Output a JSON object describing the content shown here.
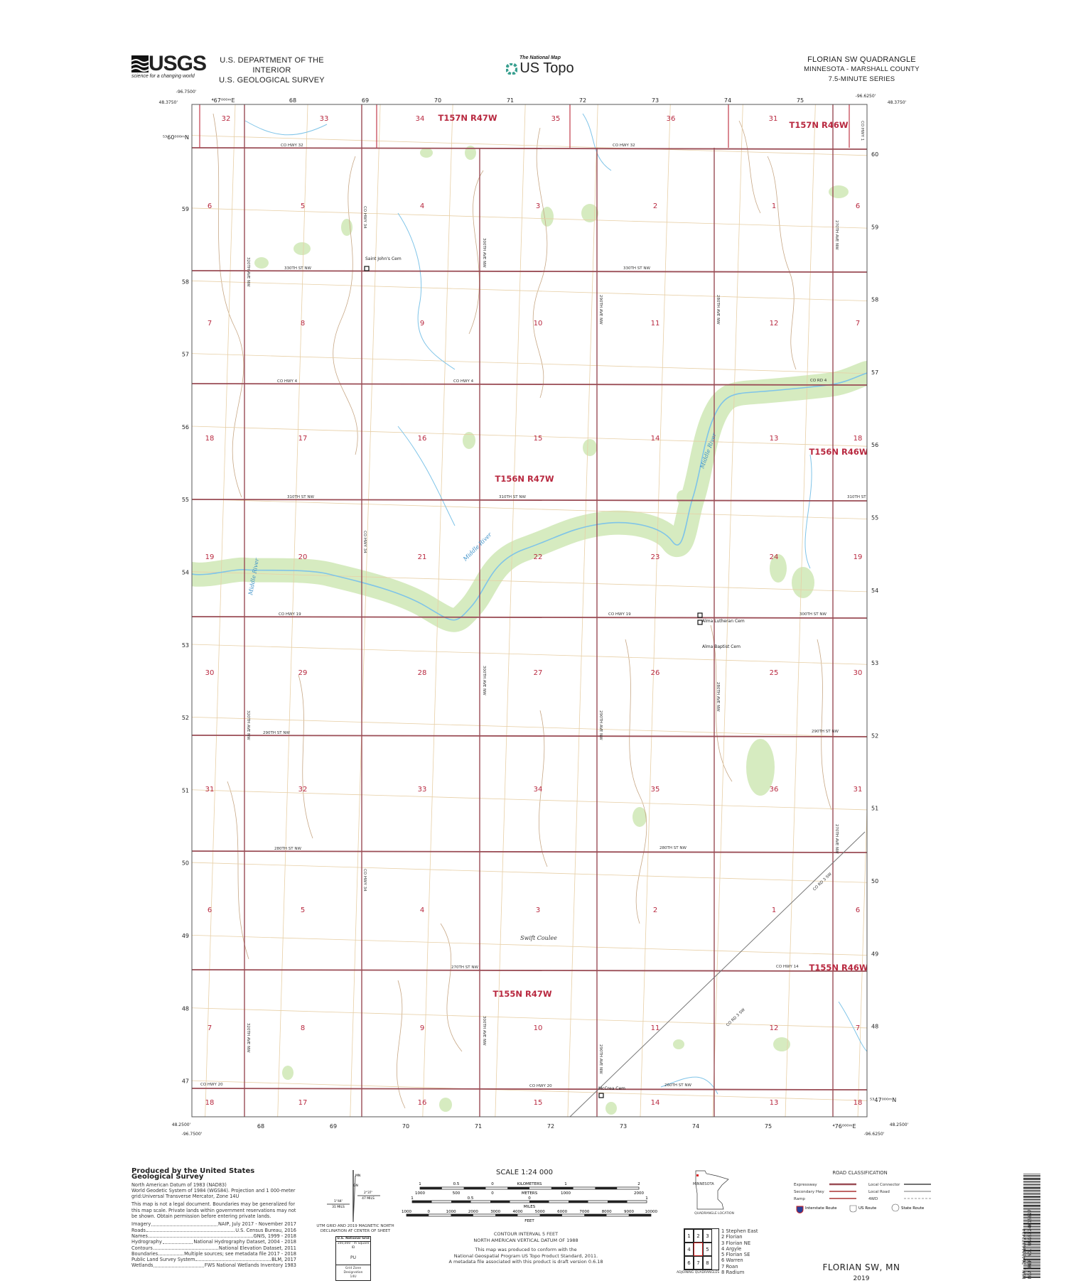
{
  "header": {
    "usgs_logo": "USGS",
    "usgs_tagline": "science for a changing world",
    "dept": "U.S. DEPARTMENT OF THE INTERIOR",
    "survey": "U.S. GEOLOGICAL SURVEY",
    "national_map": "The National Map",
    "us_topo": "US Topo",
    "quad_title": "FLORIAN SW QUADRANGLE",
    "state_county": "MINNESOTA - MARSHALL COUNTY",
    "series": "7.5-MINUTE SERIES"
  },
  "corners": {
    "lon_west": "-96.7500'",
    "lon_east": "-96.6250'",
    "lat_north": "48.3750'",
    "lat_south": "48.2500'"
  },
  "grid": {
    "easting_first": "⁴67⁰⁰⁰ᵐE",
    "easting_last": "⁴76⁰⁰⁰ᵐE",
    "eastings": [
      "68",
      "69",
      "70",
      "71",
      "72",
      "73",
      "74",
      "75"
    ],
    "northing_first": "⁵³60⁰⁰⁰ᵐN",
    "northing_last": "⁵³47⁰⁰⁰ᵐN",
    "northings_left": [
      "59",
      "58",
      "57",
      "56",
      "55",
      "54",
      "53",
      "52",
      "51",
      "50",
      "49",
      "48",
      "47"
    ],
    "northings_right": [
      "60",
      "59",
      "58",
      "57",
      "56",
      "55",
      "54",
      "53",
      "52",
      "51",
      "50",
      "49",
      "48"
    ]
  },
  "sections": {
    "top": [
      "32",
      "33",
      "34",
      "35",
      "36",
      "31"
    ],
    "rows": [
      [
        "6",
        "5",
        "4",
        "3",
        "2",
        "1",
        "6"
      ],
      [
        "7",
        "8",
        "9",
        "10",
        "11",
        "12",
        "7"
      ],
      [
        "18",
        "17",
        "16",
        "15",
        "14",
        "13",
        "18"
      ],
      [
        "19",
        "20",
        "21",
        "22",
        "23",
        "24",
        "19"
      ],
      [
        "30",
        "29",
        "28",
        "27",
        "26",
        "25",
        "30"
      ],
      [
        "31",
        "32",
        "33",
        "34",
        "35",
        "36",
        "31"
      ],
      [
        "6",
        "5",
        "4",
        "3",
        "2",
        "1",
        "6"
      ],
      [
        "7",
        "8",
        "9",
        "10",
        "11",
        "12",
        "7"
      ],
      [
        "18",
        "17",
        "16",
        "15",
        "14",
        "13",
        "18"
      ]
    ]
  },
  "townships": [
    "T157N R47W",
    "T157N R46W",
    "T156N R47W",
    "T156N R46W",
    "T155N R47W",
    "T155N R46W"
  ],
  "road_labels": {
    "horizontal": [
      "CO HWY 32",
      "CO HWY 32",
      "330TH ST NW",
      "330TH ST NW",
      "CO HWY 4",
      "CO HWY 4",
      "CO RD 4",
      "310TH ST NW",
      "310TH ST NW",
      "310TH ST NW",
      "CO HWY 19",
      "CO HWY 19",
      "300TH ST NW",
      "290TH ST NW",
      "290TH ST NW",
      "280TH ST NW",
      "280TH ST NW",
      "270TH ST NW",
      "CO HWY 14",
      "CO HWY 20",
      "CO HWY 20",
      "260TH ST NW"
    ],
    "vertical": [
      "320TH AVE NW",
      "CO HWY 34",
      "CO HWY 34",
      "CO HWY 34",
      "300TH AVE NW",
      "300TH AVE NW",
      "290TH AVE NW",
      "290TH AVE NW",
      "280TH AVE NW",
      "280TH AVE NW",
      "270TH AVE NW",
      "270TH AVE NW",
      "CO HWY 1",
      "320TH AVE NW",
      "320TH AVE NW",
      "300TH AVE NW",
      "290TH AVE NW"
    ],
    "diagonal": [
      "CO RD 3 SW",
      "CO RD 3 SW"
    ]
  },
  "places": {
    "cemeteries": [
      "Saint John's Cem",
      "Alma Lutheran Cem",
      "Alma Baptist Cem",
      "McCrea Cem"
    ],
    "features": [
      "Swift Coulee"
    ],
    "rivers": [
      "Middle River",
      "Middle River",
      "Middle River"
    ]
  },
  "colors": {
    "road": "#9a4c55",
    "plss": "#c23a4a",
    "grid": "#e7cfa6",
    "contour": "#c7a785",
    "water": "#7fc4e8",
    "woodland": "#d6ebc0",
    "label_red": "#b8283f"
  },
  "credits": {
    "title": "Produced by the United States Geological Survey",
    "datum": "North American Datum of 1983 (NAD83)",
    "projection": "World Geodetic System of 1984 (WGS84). Projection and 1 000-meter grid:Universal Transverse Mercator, Zone 14U",
    "disclaimer": "This map is not a legal document. Boundaries may be generalized for this map scale. Private lands within government reservations may not be shown. Obtain permission before entering private lands.",
    "sources": [
      {
        "label": "Imagery",
        "value": "NAIP, July 2017 - November 2017"
      },
      {
        "label": "Roads",
        "value": "U.S. Census Bureau, 2016"
      },
      {
        "label": "Names",
        "value": "GNIS, 1999 - 2018"
      },
      {
        "label": "Hydrography",
        "value": "National Hydrography Dataset, 2004 - 2018"
      },
      {
        "label": "Contours",
        "value": "National Elevation Dataset, 2011"
      },
      {
        "label": "Boundaries",
        "value": "Multiple sources; see metadata file 2017 - 2018"
      },
      {
        "label": "Public Land Survey System",
        "value": "BLM, 2017"
      },
      {
        "label": "Wetlands",
        "value": "FWS National Wetlands Inventory 1983"
      }
    ]
  },
  "declination": {
    "mn": "MN",
    "gn": "GN",
    "grid_angle": "2°37'",
    "grid_mils": "47 MILS",
    "mag_angle": "1°44'",
    "mag_mils": "31 MILS",
    "caption": "UTM GRID AND 2019 MAGNETIC NORTH DECLINATION AT CENTER OF SHEET",
    "usng_title": "U.S. National Grid",
    "usng_sub": "100,000 - m Square ID",
    "usng_id": "PU",
    "gzd_label": "Grid Zone Designation",
    "gzd": "14U"
  },
  "scale": {
    "title": "SCALE 1:24 000",
    "km_ticks": [
      "1",
      "0.5",
      "0",
      "1",
      "2"
    ],
    "km_unit": "KILOMETERS",
    "m_ticks": [
      "1000",
      "500",
      "0",
      "1000",
      "2000"
    ],
    "m_unit": "METERS",
    "mi_ticks": [
      "1",
      "0.5",
      "0",
      "1"
    ],
    "mi_unit": "MILES",
    "ft_ticks": [
      "1000",
      "0",
      "1000",
      "2000",
      "3000",
      "4000",
      "5000",
      "6000",
      "7000",
      "8000",
      "9000",
      "10000"
    ],
    "ft_unit": "FEET",
    "contour": "CONTOUR INTERVAL 5 FEET",
    "vdatum": "NORTH AMERICAN VERTICAL DATUM OF 1988",
    "conform1": "This map was produced to conform with the",
    "conform2": "National Geospatial Program US Topo Product Standard, 2011.",
    "conform3": "A metadata file associated with this product is draft version 0.6.18"
  },
  "location": {
    "state": "MINNESOTA",
    "label": "QUADRANGLE LOCATION"
  },
  "adjoining": {
    "cells": [
      "1",
      "2",
      "3",
      "4",
      "",
      "5",
      "6",
      "7",
      "8"
    ],
    "names": [
      "1 Stephen East",
      "2 Florian",
      "3 Florian NE",
      "4 Argyle",
      "5 Florian SE",
      "6 Warren",
      "7 Roan",
      "8 Radium"
    ],
    "label": "ADJOINING QUADRANGLES"
  },
  "roads_legend": {
    "title": "ROAD CLASSIFICATION",
    "items": [
      "Expressway",
      "Secondary Hwy",
      "Ramp",
      "Local Connector",
      "Local Road",
      "4WD"
    ],
    "routes": [
      "Interstate Route",
      "US Route",
      "State Route"
    ]
  },
  "footer": {
    "name": "FLORIAN SW,  MN",
    "year": "2019",
    "barcode_nsn": "NSN. 7643016372424",
    "barcode_ref": "NGA REF NO. USGSX24K15627"
  }
}
